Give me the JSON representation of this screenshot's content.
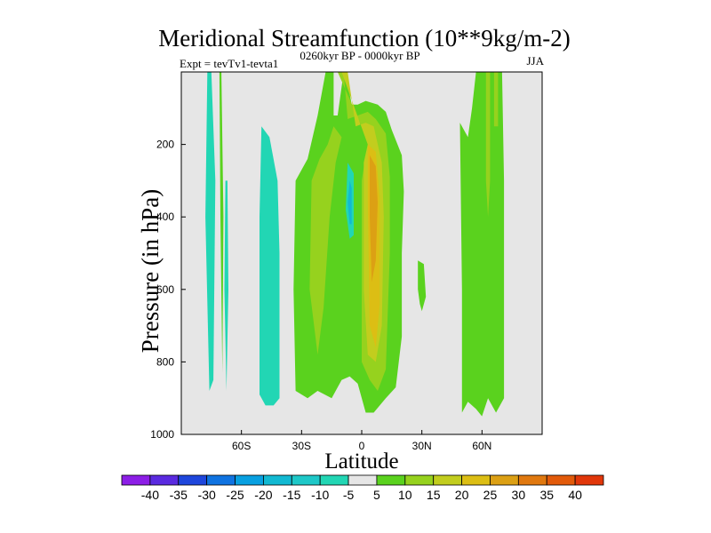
{
  "chart_data": {
    "type": "contour",
    "title": "Meridional Streamfunction (10**9kg/m-2)",
    "left_subtitle": "Expt = tevTv1-tevta1",
    "center_subtitle": "0260kyr BP - 0000kyr BP",
    "right_subtitle": "JJA",
    "xlabel": "Latitude",
    "ylabel": "Pressure (in hPa)",
    "xlim": [
      -90,
      90
    ],
    "ylim": [
      1000,
      0
    ],
    "x_ticks": [
      {
        "value": -60,
        "label": "60S"
      },
      {
        "value": -30,
        "label": "30S"
      },
      {
        "value": 0,
        "label": "0"
      },
      {
        "value": 30,
        "label": "30N"
      },
      {
        "value": 60,
        "label": "60N"
      }
    ],
    "y_ticks": [
      {
        "value": 200,
        "label": "200"
      },
      {
        "value": 400,
        "label": "400"
      },
      {
        "value": 600,
        "label": "600"
      },
      {
        "value": 800,
        "label": "800"
      },
      {
        "value": 1000,
        "label": "1000"
      }
    ],
    "colorbar": {
      "levels": [
        -40,
        -35,
        -30,
        -25,
        -20,
        -15,
        -10,
        -5,
        5,
        10,
        15,
        20,
        25,
        30,
        35,
        40
      ],
      "labels": [
        "-40",
        "-35",
        "-30",
        "-25",
        "-20",
        "-15",
        "-10",
        "-5",
        "5",
        "10",
        "15",
        "20",
        "25",
        "30",
        "35",
        "40"
      ],
      "colors": [
        "#8c1ee6",
        "#5a2ae0",
        "#1e46dc",
        "#0f73e1",
        "#08a0e1",
        "#12b9d2",
        "#1ec8c8",
        "#22d6b4",
        "#e6e6e6",
        "#5ad21e",
        "#96d21e",
        "#c2cd1e",
        "#dcbe14",
        "#dca014",
        "#e0780f",
        "#e25a0a",
        "#e1370a"
      ],
      "missing_color": "#e6e6e6"
    },
    "regions": [
      {
        "level": -5,
        "color": "#22d6b4",
        "lat": [
          -77,
          -75,
          -73,
          -74,
          -76,
          -78
        ],
        "p": [
          0,
          0,
          300,
          850,
          880,
          400
        ]
      },
      {
        "level": 5,
        "color": "#5ad21e",
        "lat": [
          -71,
          -70,
          -69,
          -69.5,
          -70.5
        ],
        "p": [
          0,
          0,
          400,
          830,
          400
        ]
      },
      {
        "level": -5,
        "color": "#22d6b4",
        "lat": [
          -68,
          -67,
          -66.5,
          -67.5,
          -68.5
        ],
        "p": [
          300,
          300,
          600,
          880,
          600
        ]
      },
      {
        "level": -5,
        "color": "#22d6b4",
        "lat": [
          -50,
          -46,
          -42,
          -41,
          -41,
          -44,
          -48,
          -51,
          -51
        ],
        "p": [
          150,
          180,
          300,
          500,
          900,
          920,
          920,
          890,
          400
        ]
      },
      {
        "level": 5,
        "color": "#5ad21e",
        "lat": [
          -33,
          -27,
          -22,
          -18,
          -14,
          -14,
          -12,
          -9,
          -8,
          -5,
          -2,
          2,
          8,
          12,
          15,
          20,
          21,
          20,
          20,
          17,
          12,
          6,
          2,
          -2,
          -6,
          -10,
          -15,
          -22,
          -27,
          -33,
          -34
        ],
        "p": [
          300,
          240,
          120,
          0,
          0,
          120,
          120,
          0,
          0,
          90,
          90,
          80,
          90,
          110,
          160,
          230,
          330,
          500,
          730,
          870,
          900,
          940,
          940,
          860,
          840,
          850,
          900,
          880,
          900,
          880,
          600
        ]
      },
      {
        "level": 10,
        "color": "#96d21e",
        "lat": [
          -25,
          -21,
          -17,
          -14,
          -10,
          -13,
          -16,
          -19,
          -22,
          -26
        ],
        "p": [
          300,
          240,
          200,
          150,
          180,
          250,
          400,
          650,
          780,
          600
        ]
      },
      {
        "level": 10,
        "color": "#96d21e",
        "lat": [
          -12,
          -9,
          -7,
          -2,
          3,
          7,
          12,
          14,
          14,
          12,
          8,
          4,
          0,
          0,
          2,
          4
        ],
        "p": [
          0,
          0,
          130,
          120,
          110,
          130,
          170,
          290,
          500,
          820,
          880,
          850,
          800,
          300,
          230,
          200
        ]
      },
      {
        "level": 15,
        "color": "#c2cd1e",
        "lat": [
          -10,
          -7,
          -3,
          2,
          6,
          10,
          11,
          10,
          7,
          3,
          1,
          1,
          3
        ],
        "p": [
          0,
          0,
          150,
          140,
          150,
          250,
          400,
          700,
          800,
          780,
          600,
          250,
          200
        ]
      },
      {
        "level": 20,
        "color": "#dcbe14",
        "lat": [
          3,
          7,
          9,
          9,
          7,
          4,
          3
        ],
        "p": [
          200,
          220,
          350,
          640,
          760,
          700,
          350
        ]
      },
      {
        "level": 25,
        "color": "#dca014",
        "lat": [
          4,
          7,
          8,
          7,
          5,
          4
        ],
        "p": [
          230,
          260,
          360,
          520,
          580,
          400
        ]
      },
      {
        "level": -5,
        "color": "#22d6b4",
        "lat": [
          -7,
          -4,
          -4,
          -6,
          -8
        ],
        "p": [
          250,
          280,
          450,
          460,
          380
        ]
      },
      {
        "level": -10,
        "color": "#12b9d2",
        "lat": [
          -6,
          -5,
          -5,
          -6,
          -7
        ],
        "p": [
          300,
          320,
          420,
          420,
          360
        ]
      },
      {
        "level": 5,
        "color": "#5ad21e",
        "lat": [
          28,
          31,
          32,
          30,
          29,
          28
        ],
        "p": [
          520,
          530,
          620,
          660,
          640,
          600
        ]
      },
      {
        "level": 5,
        "color": "#5ad21e",
        "lat": [
          49,
          53,
          55,
          57,
          60,
          63,
          70,
          71,
          71,
          67,
          63,
          60,
          57,
          53,
          50,
          50
        ],
        "p": [
          140,
          180,
          100,
          0,
          0,
          0,
          0,
          300,
          900,
          940,
          900,
          950,
          930,
          910,
          940,
          600
        ]
      },
      {
        "level": 10,
        "color": "#96d21e",
        "lat": [
          62,
          64,
          64,
          63,
          62
        ],
        "p": [
          0,
          0,
          300,
          400,
          300
        ]
      },
      {
        "level": 10,
        "color": "#96d21e",
        "lat": [
          66,
          68,
          68,
          66
        ],
        "p": [
          0,
          0,
          150,
          150
        ]
      }
    ]
  }
}
